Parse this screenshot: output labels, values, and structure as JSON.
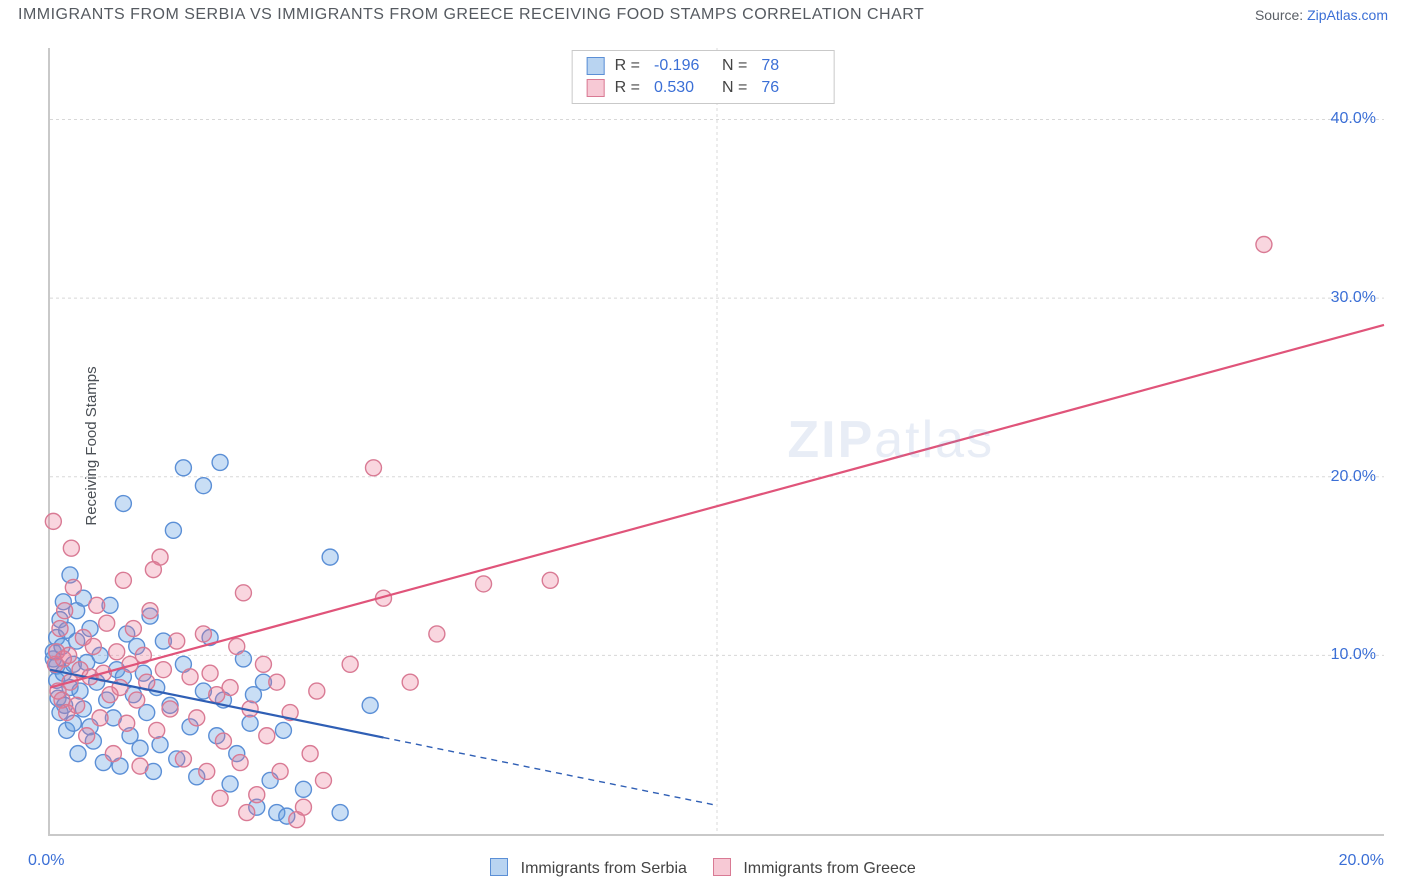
{
  "title": "IMMIGRANTS FROM SERBIA VS IMMIGRANTS FROM GREECE RECEIVING FOOD STAMPS CORRELATION CHART",
  "source_label": "Source:",
  "source_name": "ZipAtlas.com",
  "watermark": "ZIPatlas",
  "y_axis_label": "Receiving Food Stamps",
  "chart": {
    "type": "scatter",
    "xlim": [
      0,
      20
    ],
    "ylim": [
      0,
      44
    ],
    "x_tick_step": 10,
    "x_origin_label": "0.0%",
    "x_end_label": "20.0%",
    "y_ticks": [
      10,
      20,
      30,
      40
    ],
    "y_tick_labels": [
      "10.0%",
      "20.0%",
      "30.0%",
      "40.0%"
    ],
    "grid_color": "#d8d8d8",
    "grid_dash": "3,3",
    "axis_color": "#c9c9c9",
    "background_color": "#ffffff",
    "marker_radius": 8,
    "marker_stroke_width": 1.4,
    "trend_line_width": 2.2,
    "series": [
      {
        "name": "Immigrants from Serbia",
        "fill": "rgba(100,160,225,0.35)",
        "stroke": "#5b8fd6",
        "swatch_fill": "rgba(100,160,225,0.45)",
        "swatch_stroke": "#5b8fd6",
        "r_value": "-0.196",
        "n_value": "78",
        "trend": {
          "x1": 0,
          "y1": 9.2,
          "x2": 5,
          "y2": 5.4,
          "solid_to_x": 5,
          "dash_to_x": 10,
          "dash_y": 1.6,
          "color": "#2f5fb5"
        },
        "points": [
          [
            0.05,
            9.8
          ],
          [
            0.05,
            10.2
          ],
          [
            0.1,
            9.4
          ],
          [
            0.1,
            8.6
          ],
          [
            0.1,
            11.0
          ],
          [
            0.12,
            7.6
          ],
          [
            0.15,
            6.8
          ],
          [
            0.15,
            12.0
          ],
          [
            0.18,
            10.5
          ],
          [
            0.2,
            9.0
          ],
          [
            0.2,
            13.0
          ],
          [
            0.22,
            7.2
          ],
          [
            0.25,
            5.8
          ],
          [
            0.25,
            11.4
          ],
          [
            0.3,
            8.2
          ],
          [
            0.3,
            14.5
          ],
          [
            0.35,
            6.2
          ],
          [
            0.35,
            9.5
          ],
          [
            0.4,
            10.8
          ],
          [
            0.4,
            12.5
          ],
          [
            0.42,
            4.5
          ],
          [
            0.45,
            8.0
          ],
          [
            0.5,
            7.0
          ],
          [
            0.5,
            13.2
          ],
          [
            0.55,
            9.6
          ],
          [
            0.6,
            6.0
          ],
          [
            0.6,
            11.5
          ],
          [
            0.65,
            5.2
          ],
          [
            0.7,
            8.5
          ],
          [
            0.75,
            10.0
          ],
          [
            0.8,
            4.0
          ],
          [
            0.85,
            7.5
          ],
          [
            0.9,
            12.8
          ],
          [
            0.95,
            6.5
          ],
          [
            1.0,
            9.2
          ],
          [
            1.05,
            3.8
          ],
          [
            1.1,
            8.8
          ],
          [
            1.1,
            18.5
          ],
          [
            1.15,
            11.2
          ],
          [
            1.2,
            5.5
          ],
          [
            1.25,
            7.8
          ],
          [
            1.3,
            10.5
          ],
          [
            1.35,
            4.8
          ],
          [
            1.4,
            9.0
          ],
          [
            1.45,
            6.8
          ],
          [
            1.5,
            12.2
          ],
          [
            1.55,
            3.5
          ],
          [
            1.6,
            8.2
          ],
          [
            1.65,
            5.0
          ],
          [
            1.7,
            10.8
          ],
          [
            1.8,
            7.2
          ],
          [
            1.85,
            17.0
          ],
          [
            1.9,
            4.2
          ],
          [
            2.0,
            9.5
          ],
          [
            2.0,
            20.5
          ],
          [
            2.1,
            6.0
          ],
          [
            2.2,
            3.2
          ],
          [
            2.3,
            8.0
          ],
          [
            2.3,
            19.5
          ],
          [
            2.4,
            11.0
          ],
          [
            2.5,
            5.5
          ],
          [
            2.55,
            20.8
          ],
          [
            2.6,
            7.5
          ],
          [
            2.7,
            2.8
          ],
          [
            2.8,
            4.5
          ],
          [
            2.9,
            9.8
          ],
          [
            3.0,
            6.2
          ],
          [
            3.1,
            1.5
          ],
          [
            3.2,
            8.5
          ],
          [
            3.3,
            3.0
          ],
          [
            3.4,
            1.2
          ],
          [
            3.5,
            5.8
          ],
          [
            3.55,
            1.0
          ],
          [
            3.8,
            2.5
          ],
          [
            4.2,
            15.5
          ],
          [
            4.35,
            1.2
          ],
          [
            4.8,
            7.2
          ],
          [
            3.05,
            7.8
          ]
        ]
      },
      {
        "name": "Immigrants from Greece",
        "fill": "rgba(235,120,150,0.30)",
        "stroke": "#d97a94",
        "swatch_fill": "rgba(235,120,150,0.40)",
        "swatch_stroke": "#d97a94",
        "r_value": "0.530",
        "n_value": "76",
        "trend": {
          "x1": 0,
          "y1": 8.2,
          "x2": 20,
          "y2": 28.5,
          "color": "#e0547a"
        },
        "points": [
          [
            0.05,
            17.5
          ],
          [
            0.08,
            9.5
          ],
          [
            0.1,
            10.2
          ],
          [
            0.12,
            8.0
          ],
          [
            0.15,
            11.5
          ],
          [
            0.18,
            7.5
          ],
          [
            0.2,
            9.8
          ],
          [
            0.22,
            12.5
          ],
          [
            0.25,
            6.8
          ],
          [
            0.28,
            10.0
          ],
          [
            0.3,
            8.5
          ],
          [
            0.35,
            13.8
          ],
          [
            0.4,
            7.2
          ],
          [
            0.45,
            9.2
          ],
          [
            0.5,
            11.0
          ],
          [
            0.55,
            5.5
          ],
          [
            0.6,
            8.8
          ],
          [
            0.65,
            10.5
          ],
          [
            0.7,
            12.8
          ],
          [
            0.75,
            6.5
          ],
          [
            0.8,
            9.0
          ],
          [
            0.85,
            11.8
          ],
          [
            0.9,
            7.8
          ],
          [
            0.95,
            4.5
          ],
          [
            1.0,
            10.2
          ],
          [
            1.05,
            8.2
          ],
          [
            1.1,
            14.2
          ],
          [
            1.15,
            6.2
          ],
          [
            1.2,
            9.5
          ],
          [
            1.25,
            11.5
          ],
          [
            1.3,
            7.5
          ],
          [
            1.35,
            3.8
          ],
          [
            1.4,
            10.0
          ],
          [
            1.45,
            8.5
          ],
          [
            1.5,
            12.5
          ],
          [
            1.6,
            5.8
          ],
          [
            1.65,
            15.5
          ],
          [
            1.7,
            9.2
          ],
          [
            1.8,
            7.0
          ],
          [
            1.9,
            10.8
          ],
          [
            2.0,
            4.2
          ],
          [
            2.1,
            8.8
          ],
          [
            2.2,
            6.5
          ],
          [
            2.3,
            11.2
          ],
          [
            2.35,
            3.5
          ],
          [
            2.4,
            9.0
          ],
          [
            2.5,
            7.8
          ],
          [
            2.55,
            2.0
          ],
          [
            2.6,
            5.2
          ],
          [
            2.7,
            8.2
          ],
          [
            2.8,
            10.5
          ],
          [
            2.85,
            4.0
          ],
          [
            2.9,
            13.5
          ],
          [
            3.0,
            7.0
          ],
          [
            3.1,
            2.2
          ],
          [
            3.2,
            9.5
          ],
          [
            3.25,
            5.5
          ],
          [
            3.4,
            8.5
          ],
          [
            3.45,
            3.5
          ],
          [
            3.6,
            6.8
          ],
          [
            3.7,
            0.8
          ],
          [
            3.9,
            4.5
          ],
          [
            4.0,
            8.0
          ],
          [
            4.1,
            3.0
          ],
          [
            4.5,
            9.5
          ],
          [
            4.85,
            20.5
          ],
          [
            5.0,
            13.2
          ],
          [
            5.4,
            8.5
          ],
          [
            5.8,
            11.2
          ],
          [
            6.5,
            14.0
          ],
          [
            7.5,
            14.2
          ],
          [
            18.2,
            33.0
          ],
          [
            2.95,
            1.2
          ],
          [
            3.8,
            1.5
          ],
          [
            1.55,
            14.8
          ],
          [
            0.32,
            16.0
          ]
        ]
      }
    ],
    "stats_box": {
      "rows": [
        {
          "r_label": "R =",
          "n_label": "N ="
        },
        {
          "r_label": "R =",
          "n_label": "N ="
        }
      ]
    }
  }
}
